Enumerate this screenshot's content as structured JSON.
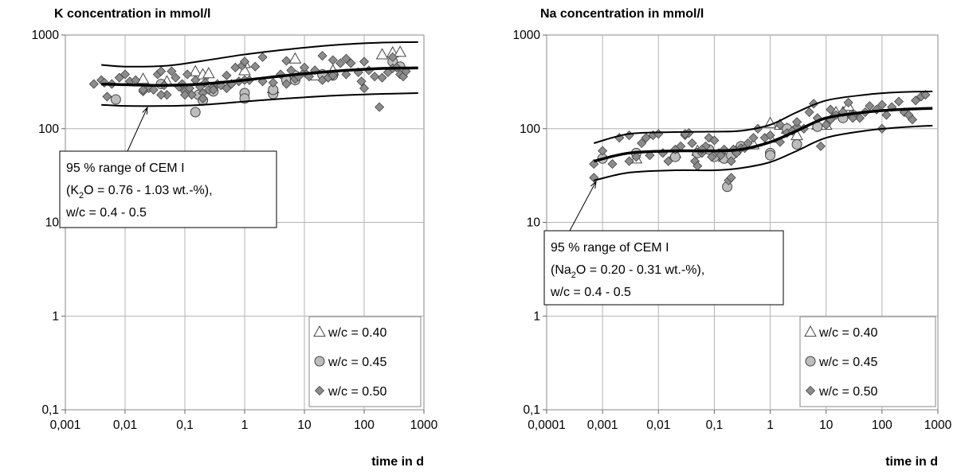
{
  "chart_data": [
    {
      "type": "scatter",
      "title": "K concentration in mmol/l",
      "xlabel": "time in d",
      "ylabel": "",
      "xscale": "log",
      "yscale": "log",
      "xlim": [
        0.001,
        1000
      ],
      "ylim": [
        0.1,
        1000
      ],
      "x_tick_labels": [
        "0,001",
        "0,01",
        "0,1",
        "1",
        "10",
        "100",
        "1000"
      ],
      "y_tick_labels": [
        "0,1",
        "1",
        "10",
        "100",
        "1000"
      ],
      "grid": true,
      "legend_placement": "bottom-right",
      "annotation": {
        "line1": "95 % range of CEM I",
        "line2_pre": "(K",
        "line2_sub": "2",
        "line2_post": "O = 0.76 - 1.03 wt.-%),",
        "line3": "w/c = 0.4 - 0.5"
      },
      "bands": [
        {
          "name": "upper",
          "x": [
            0.004,
            0.01,
            0.05,
            0.2,
            1,
            5,
            30,
            200,
            800
          ],
          "y": [
            480,
            460,
            470,
            530,
            620,
            700,
            780,
            830,
            840
          ]
        },
        {
          "name": "mean",
          "x": [
            0.004,
            0.01,
            0.05,
            0.2,
            1,
            5,
            30,
            200,
            800
          ],
          "y": [
            300,
            295,
            290,
            300,
            330,
            370,
            410,
            440,
            445
          ]
        },
        {
          "name": "lower",
          "x": [
            0.004,
            0.01,
            0.05,
            0.2,
            1,
            5,
            30,
            200,
            800
          ],
          "y": [
            180,
            175,
            175,
            180,
            195,
            210,
            225,
            235,
            240
          ]
        }
      ],
      "series": [
        {
          "name": "w/c = 0.40",
          "marker": "triangle",
          "x": [
            0.02,
            0.05,
            0.15,
            0.2,
            0.25,
            1,
            1,
            3,
            7,
            15,
            30,
            200,
            300,
            400
          ],
          "y": [
            340,
            320,
            410,
            380,
            390,
            420,
            500,
            270,
            560,
            370,
            420,
            620,
            650,
            660
          ]
        },
        {
          "name": "w/c = 0.45",
          "marker": "circle",
          "x": [
            0.007,
            0.04,
            0.1,
            0.15,
            0.17,
            0.2,
            0.3,
            1,
            1,
            3,
            3,
            5,
            7,
            7,
            20,
            30,
            300,
            400
          ],
          "y": [
            205,
            300,
            270,
            150,
            230,
            200,
            250,
            240,
            210,
            235,
            260,
            330,
            330,
            370,
            380,
            370,
            520,
            460
          ]
        },
        {
          "name": "w/c = 0.50",
          "marker": "diamond",
          "x": [
            0.004,
            0.005,
            0.006,
            0.008,
            0.01,
            0.012,
            0.015,
            0.02,
            0.025,
            0.03,
            0.035,
            0.04,
            0.045,
            0.05,
            0.06,
            0.07,
            0.08,
            0.09,
            0.1,
            0.11,
            0.12,
            0.13,
            0.15,
            0.18,
            0.2,
            0.22,
            0.25,
            0.3,
            0.35,
            0.4,
            0.5,
            0.6,
            0.7,
            0.8,
            0.9,
            1,
            1.2,
            1.5,
            2,
            3,
            4,
            5,
            6,
            7,
            8,
            10,
            12,
            15,
            20,
            25,
            30,
            30,
            40,
            50,
            60,
            80,
            90,
            100,
            120,
            150,
            180,
            200,
            250,
            300,
            350,
            400,
            450,
            500,
            0.003,
            0.0045,
            0.02,
            0.04,
            0.1,
            0.2,
            0.3,
            0.5,
            1,
            2,
            5,
            10,
            20,
            50,
            100,
            300
          ],
          "y": [
            330,
            220,
            300,
            350,
            380,
            320,
            330,
            250,
            270,
            260,
            380,
            410,
            290,
            230,
            410,
            350,
            280,
            300,
            250,
            380,
            270,
            230,
            330,
            280,
            240,
            310,
            260,
            280,
            300,
            290,
            270,
            300,
            450,
            320,
            470,
            520,
            330,
            460,
            320,
            310,
            380,
            300,
            420,
            340,
            360,
            400,
            360,
            420,
            330,
            350,
            370,
            540,
            500,
            380,
            500,
            400,
            320,
            270,
            420,
            360,
            170,
            350,
            400,
            440,
            450,
            380,
            360,
            410,
            300,
            310,
            260,
            230,
            230,
            210,
            260,
            370,
            330,
            580,
            530,
            450,
            600,
            560,
            520,
            580
          ]
        }
      ]
    },
    {
      "type": "scatter",
      "title": "Na concentration in mmol/l",
      "xlabel": "time in d",
      "ylabel": "",
      "xscale": "log",
      "yscale": "log",
      "xlim": [
        0.0001,
        1000
      ],
      "ylim": [
        0.1,
        1000
      ],
      "x_tick_labels": [
        "0,0001",
        "0,001",
        "0,01",
        "0,1",
        "1",
        "10",
        "100",
        "1000"
      ],
      "y_tick_labels": [
        "0,1",
        "1",
        "10",
        "100",
        "1000"
      ],
      "grid": true,
      "legend_placement": "bottom-right",
      "annotation": {
        "line1": "95 % range of CEM I",
        "line2_pre": "(Na",
        "line2_sub": "2",
        "line2_post": "O = 0.20 - 0.31 wt.-%),",
        "line3": "w/c = 0.4 - 0.5"
      },
      "bands": [
        {
          "name": "upper",
          "x": [
            0.0007,
            0.003,
            0.02,
            0.1,
            0.3,
            1,
            3,
            10,
            50,
            200,
            800
          ],
          "y": [
            70,
            88,
            92,
            93,
            95,
            110,
            150,
            200,
            230,
            245,
            250
          ]
        },
        {
          "name": "mean",
          "x": [
            0.0007,
            0.003,
            0.02,
            0.1,
            0.3,
            1,
            3,
            10,
            50,
            200,
            800
          ],
          "y": [
            45,
            55,
            58,
            58,
            60,
            72,
            95,
            130,
            150,
            160,
            165
          ]
        },
        {
          "name": "lower",
          "x": [
            0.0007,
            0.003,
            0.02,
            0.1,
            0.3,
            1,
            3,
            10,
            50,
            200,
            800
          ],
          "y": [
            28,
            34,
            36,
            36,
            38,
            44,
            58,
            80,
            95,
            103,
            108
          ]
        }
      ],
      "series": [
        {
          "name": "w/c = 0.40",
          "marker": "triangle",
          "x": [
            0.004,
            0.02,
            0.05,
            0.15,
            0.2,
            0.5,
            1,
            1,
            1.5,
            2,
            3,
            7,
            10,
            15,
            20,
            25
          ],
          "y": [
            48,
            55,
            58,
            50,
            55,
            68,
            80,
            115,
            110,
            100,
            85,
            110,
            110,
            150,
            150,
            175
          ]
        },
        {
          "name": "w/c = 0.45",
          "marker": "circle",
          "x": [
            0.001,
            0.004,
            0.02,
            0.05,
            0.08,
            0.1,
            0.15,
            0.17,
            0.2,
            0.25,
            0.3,
            1,
            1,
            2,
            3,
            7,
            20,
            30
          ],
          "y": [
            48,
            55,
            50,
            55,
            60,
            50,
            48,
            24,
            52,
            58,
            65,
            55,
            52,
            100,
            68,
            105,
            130,
            140
          ]
        },
        {
          "name": "w/c = 0.50",
          "marker": "diamond",
          "x": [
            0.0007,
            0.0007,
            0.0015,
            0.002,
            0.003,
            0.004,
            0.005,
            0.006,
            0.008,
            0.01,
            0.012,
            0.015,
            0.02,
            0.025,
            0.03,
            0.035,
            0.04,
            0.045,
            0.05,
            0.06,
            0.07,
            0.08,
            0.09,
            0.1,
            0.12,
            0.15,
            0.18,
            0.2,
            0.22,
            0.25,
            0.3,
            0.35,
            0.4,
            0.5,
            0.6,
            0.8,
            1,
            1.5,
            2,
            2.5,
            3,
            4,
            5,
            6,
            7,
            8,
            10,
            12,
            15,
            20,
            25,
            30,
            40,
            50,
            60,
            80,
            100,
            120,
            150,
            200,
            250,
            300,
            400,
            500,
            0.001,
            0.003,
            0.007,
            0.03,
            0.06,
            0.13,
            0.2,
            1.5,
            3,
            12,
            30,
            100,
            350,
            600
          ],
          "y": [
            42,
            30,
            42,
            80,
            45,
            50,
            70,
            80,
            85,
            88,
            55,
            45,
            60,
            65,
            85,
            90,
            70,
            45,
            40,
            55,
            65,
            80,
            50,
            75,
            55,
            60,
            28,
            30,
            60,
            55,
            62,
            62,
            70,
            80,
            100,
            80,
            85,
            72,
            90,
            95,
            105,
            100,
            150,
            185,
            130,
            65,
            110,
            125,
            140,
            150,
            190,
            140,
            130,
            150,
            175,
            160,
            180,
            140,
            170,
            195,
            150,
            140,
            200,
            220,
            58,
            85,
            52,
            88,
            60,
            52,
            45,
            110,
            118,
            160,
            130,
            100,
            125,
            230
          ]
        }
      ]
    }
  ]
}
